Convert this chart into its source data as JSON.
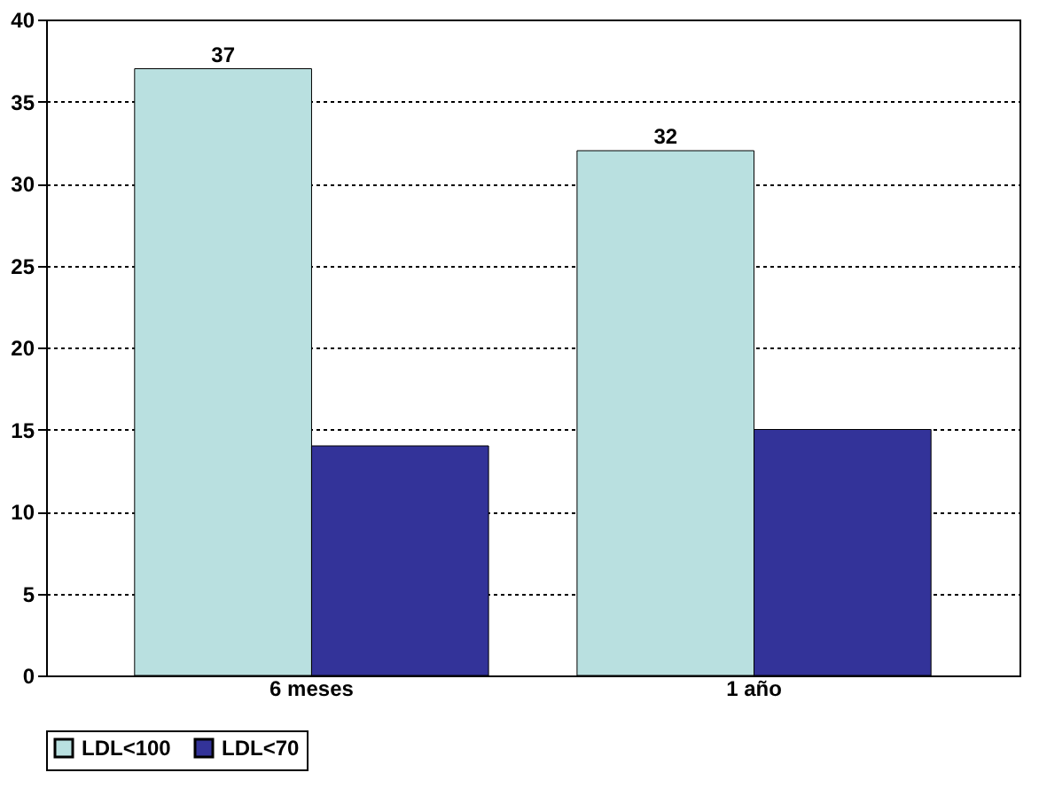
{
  "chart_data": {
    "type": "bar",
    "categories": [
      "6 meses",
      "1 año"
    ],
    "series": [
      {
        "name": "LDL<100",
        "color": "#b9e0e0",
        "values": [
          37,
          32
        ],
        "value_labels": [
          "37",
          "32"
        ]
      },
      {
        "name": "LDL<70",
        "color": "#333399",
        "values": [
          14,
          15
        ],
        "value_labels": [
          null,
          null
        ]
      }
    ],
    "ylim": [
      0,
      40
    ],
    "yticks": [
      0,
      5,
      10,
      15,
      20,
      25,
      30,
      35,
      40
    ],
    "grid": "y",
    "legend": "bottom"
  }
}
